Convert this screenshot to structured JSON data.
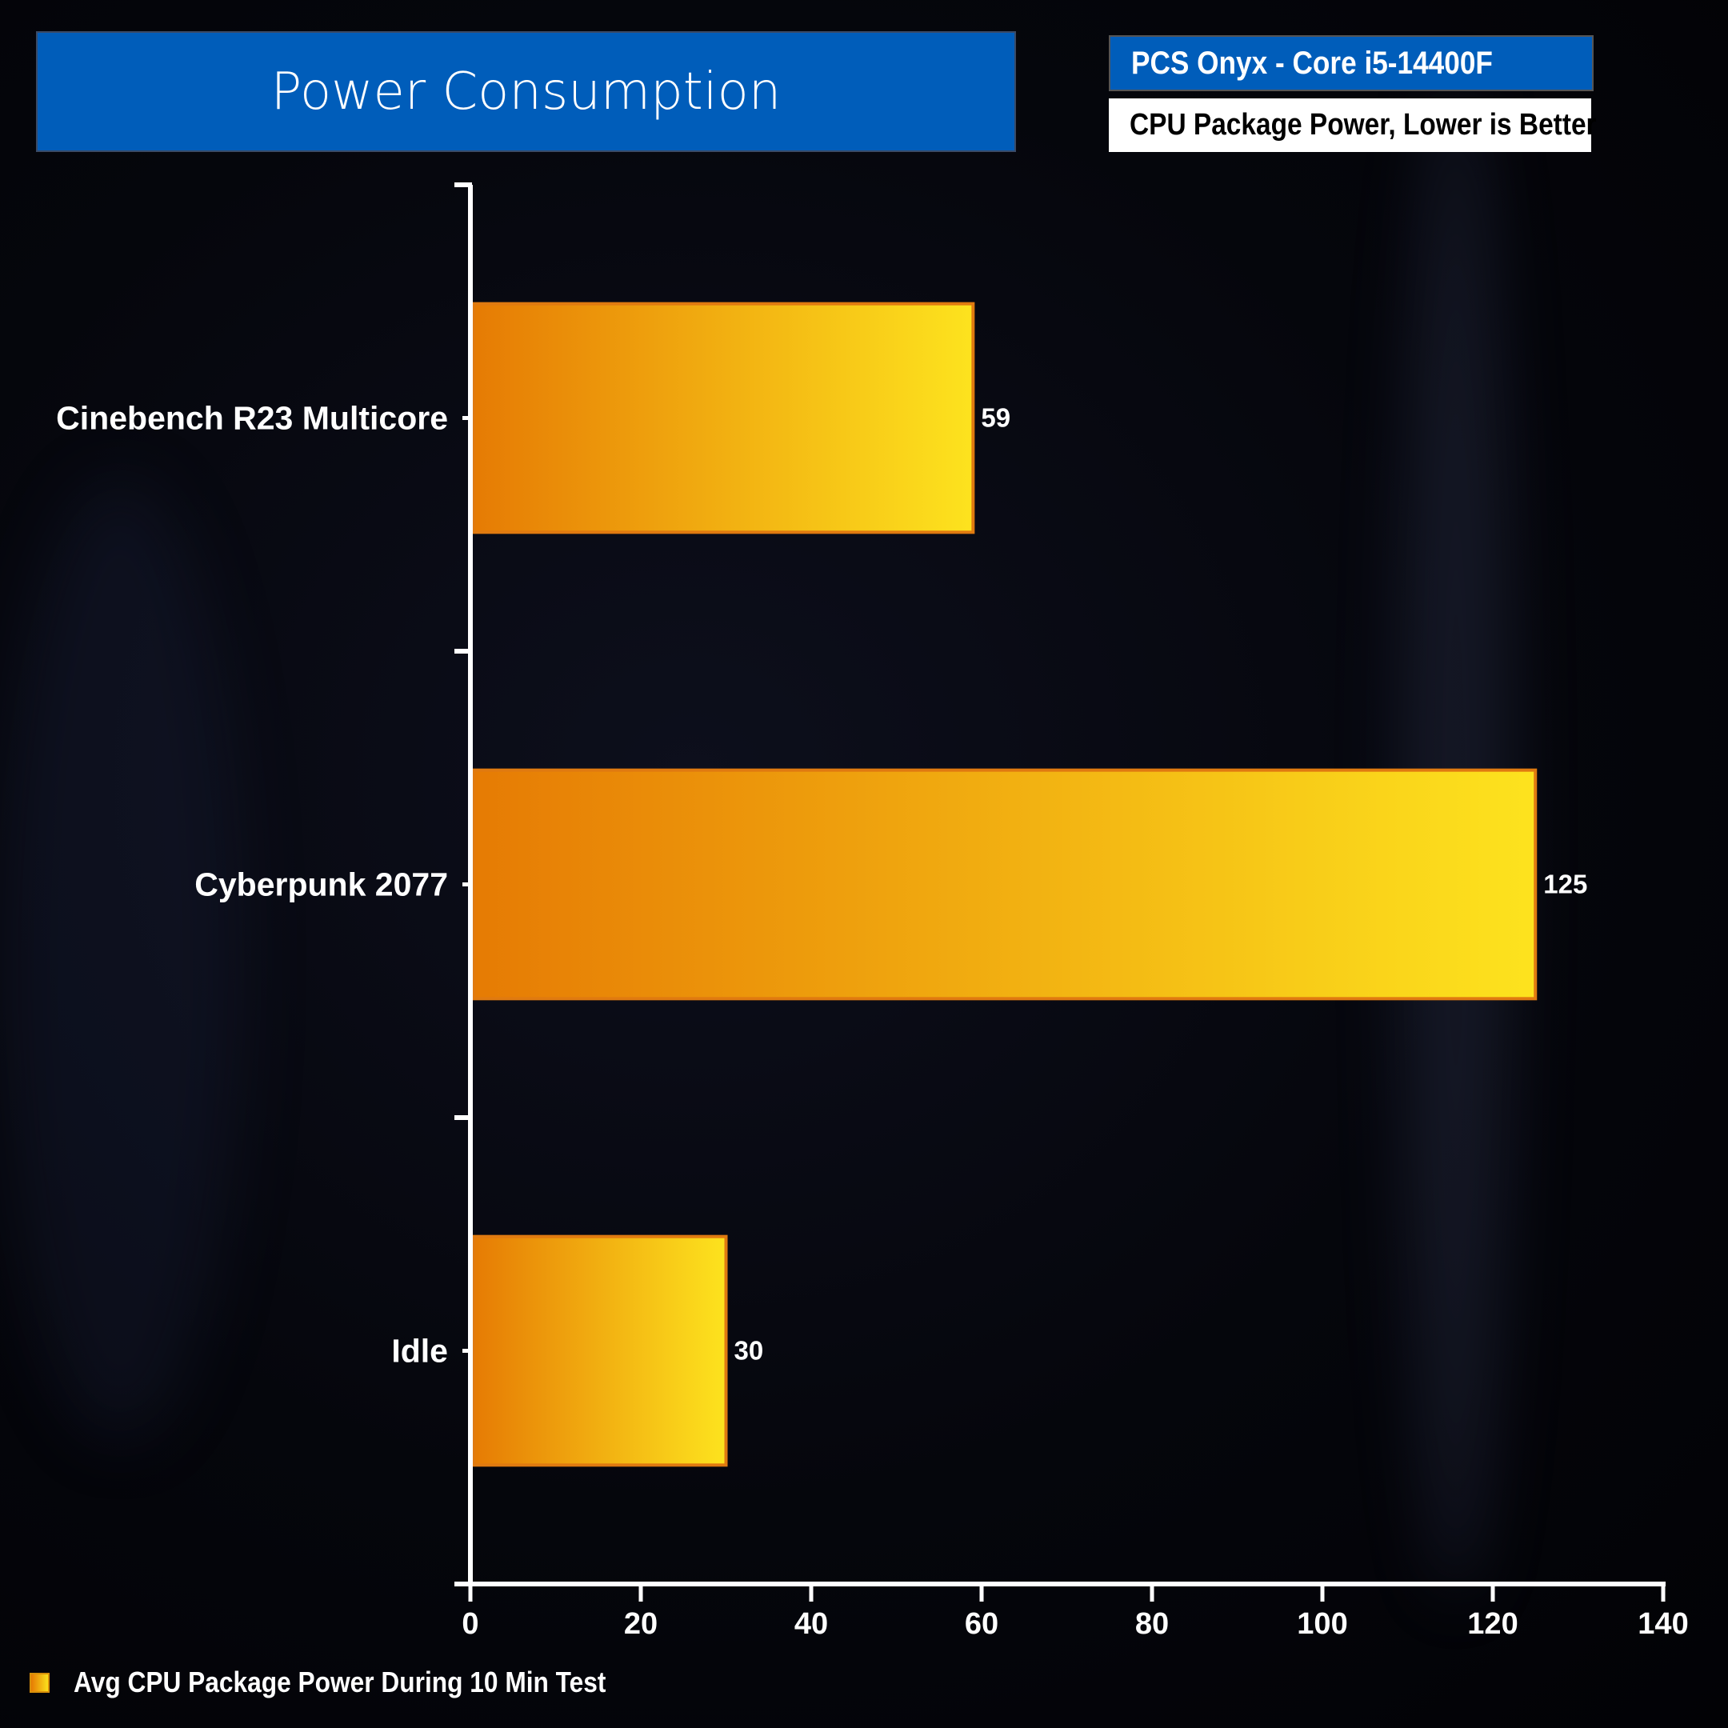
{
  "title": "Power Consumption",
  "subtitle_system": "PCS Onyx - Core i5-14400F",
  "subtitle_metric": "CPU Package Power, Lower is Better",
  "colors": {
    "bar_start": "#e67b04",
    "bar_end": "#fde31e",
    "bar_border": "#e07a10",
    "header_blue": "#005dba"
  },
  "chart_data": {
    "type": "bar",
    "orientation": "horizontal",
    "categories": [
      "Cinebench R23 Multicore",
      "Cyberpunk 2077",
      "Idle"
    ],
    "series": [
      {
        "name": "Avg CPU Package Power During 10 Min Test",
        "values": [
          59,
          125,
          30
        ]
      }
    ],
    "data_labels": [
      "59",
      "125",
      "30"
    ],
    "xlim": [
      0,
      140
    ],
    "xticks": [
      0,
      20,
      40,
      60,
      80,
      100,
      120,
      140
    ],
    "xtick_labels": [
      "0",
      "20",
      "40",
      "60",
      "80",
      "100",
      "120",
      "140"
    ],
    "grid": false,
    "legend": "bottom-left"
  }
}
